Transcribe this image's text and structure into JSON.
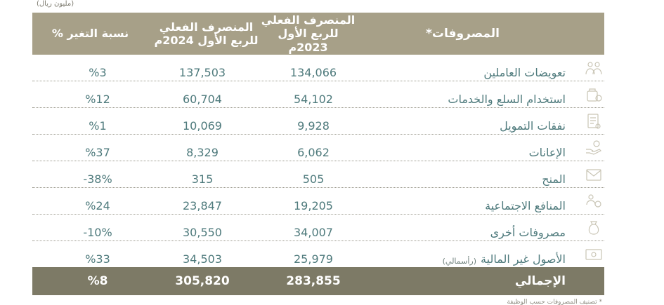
{
  "unit_note": "(مليون ريال)",
  "header": {
    "expenses": "المصروفات*",
    "actual_2023_line1": "المنصرف الفعلي",
    "actual_2023_line2": "للربع الأول 2023م",
    "actual_2024_line1": "المنصرف الفعلي",
    "actual_2024_line2": "للربع الأول 2024م",
    "change": "نسبة التغير %"
  },
  "rows": [
    {
      "name": "تعويضات العاملين",
      "sub": "",
      "v2023": "134,066",
      "v2024": "137,503",
      "change": "%3",
      "icon": "people-icon"
    },
    {
      "name": "استخدام السلع والخدمات",
      "sub": "",
      "v2023": "54,102",
      "v2024": "60,704",
      "change": "%12",
      "icon": "goods-services-icon"
    },
    {
      "name": "نفقات التمويل",
      "sub": "",
      "v2023": "9,928",
      "v2024": "10,069",
      "change": "%1",
      "icon": "finance-document-icon"
    },
    {
      "name": "الإعانات",
      "sub": "",
      "v2023": "6,062",
      "v2024": "8,329",
      "change": "%37",
      "icon": "hand-coin-icon"
    },
    {
      "name": "المنح",
      "sub": "",
      "v2023": "505",
      "v2024": "315",
      "change": "-38%",
      "icon": "envelope-icon"
    },
    {
      "name": "المنافع الاجتماعية",
      "sub": "",
      "v2023": "19,205",
      "v2024": "23,847",
      "change": "%24",
      "icon": "social-benefits-icon"
    },
    {
      "name": "مصروفات أخرى",
      "sub": "",
      "v2023": "34,007",
      "v2024": "30,550",
      "change": "-10%",
      "icon": "money-bag-icon"
    },
    {
      "name": "الأصول غير المالية",
      "sub": "(رأسمالي)",
      "v2023": "25,979",
      "v2024": "34,503",
      "change": "%33",
      "icon": "banknote-icon"
    }
  ],
  "total": {
    "name": "الإجمالي",
    "v2023": "283,855",
    "v2024": "305,820",
    "change": "%8"
  },
  "footnote": "* تصنيف المصروفات حسب الوظيفة"
}
